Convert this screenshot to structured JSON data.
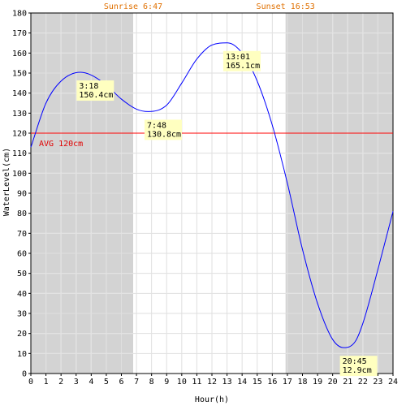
{
  "chart_data": {
    "type": "line",
    "title": "",
    "xlabel": "Hour(h)",
    "ylabel": "WaterLevel(cm)",
    "xlim": [
      0,
      24
    ],
    "ylim": [
      0,
      180
    ],
    "x_ticks": [
      0,
      1,
      2,
      3,
      4,
      5,
      6,
      7,
      8,
      9,
      10,
      11,
      12,
      13,
      14,
      15,
      16,
      17,
      18,
      19,
      20,
      21,
      22,
      23,
      24
    ],
    "y_ticks": [
      0,
      10,
      20,
      30,
      40,
      50,
      60,
      70,
      80,
      90,
      100,
      110,
      120,
      130,
      140,
      150,
      160,
      170,
      180
    ],
    "grid": true,
    "sunrise": {
      "label": "Sunrise 6:47",
      "hour": 6.78
    },
    "sunset": {
      "label": "Sunset 16:53",
      "hour": 16.88
    },
    "night_color": "#d3d3d3",
    "line_color": "#0000ff",
    "avg": {
      "label": "AVG 120cm",
      "value": 120,
      "color": "#ff0000"
    },
    "series": [
      {
        "x": [
          0,
          1,
          2,
          3.3,
          4,
          5,
          6,
          7,
          7.8,
          9,
          10,
          11,
          12,
          13.02,
          14,
          15,
          16,
          17,
          18,
          19,
          20,
          20.75,
          21.5,
          22,
          23,
          24
        ],
        "y": [
          113,
          135,
          146,
          150.4,
          149,
          144,
          137,
          132,
          130.8,
          134,
          145,
          157,
          164,
          165.1,
          160,
          146,
          124,
          95,
          62,
          35,
          17,
          12.9,
          16,
          25,
          52,
          81
        ]
      }
    ],
    "annotations": [
      {
        "time": "3:18",
        "level": "150.4cm",
        "x": 3.3,
        "y": 150.4
      },
      {
        "time": "7:48",
        "level": "130.8cm",
        "x": 7.8,
        "y": 130.8
      },
      {
        "time": "13:01",
        "level": "165.1cm",
        "x": 13.02,
        "y": 165.1
      },
      {
        "time": "20:45",
        "level": "12.9cm",
        "x": 20.75,
        "y": 12.9
      }
    ]
  }
}
